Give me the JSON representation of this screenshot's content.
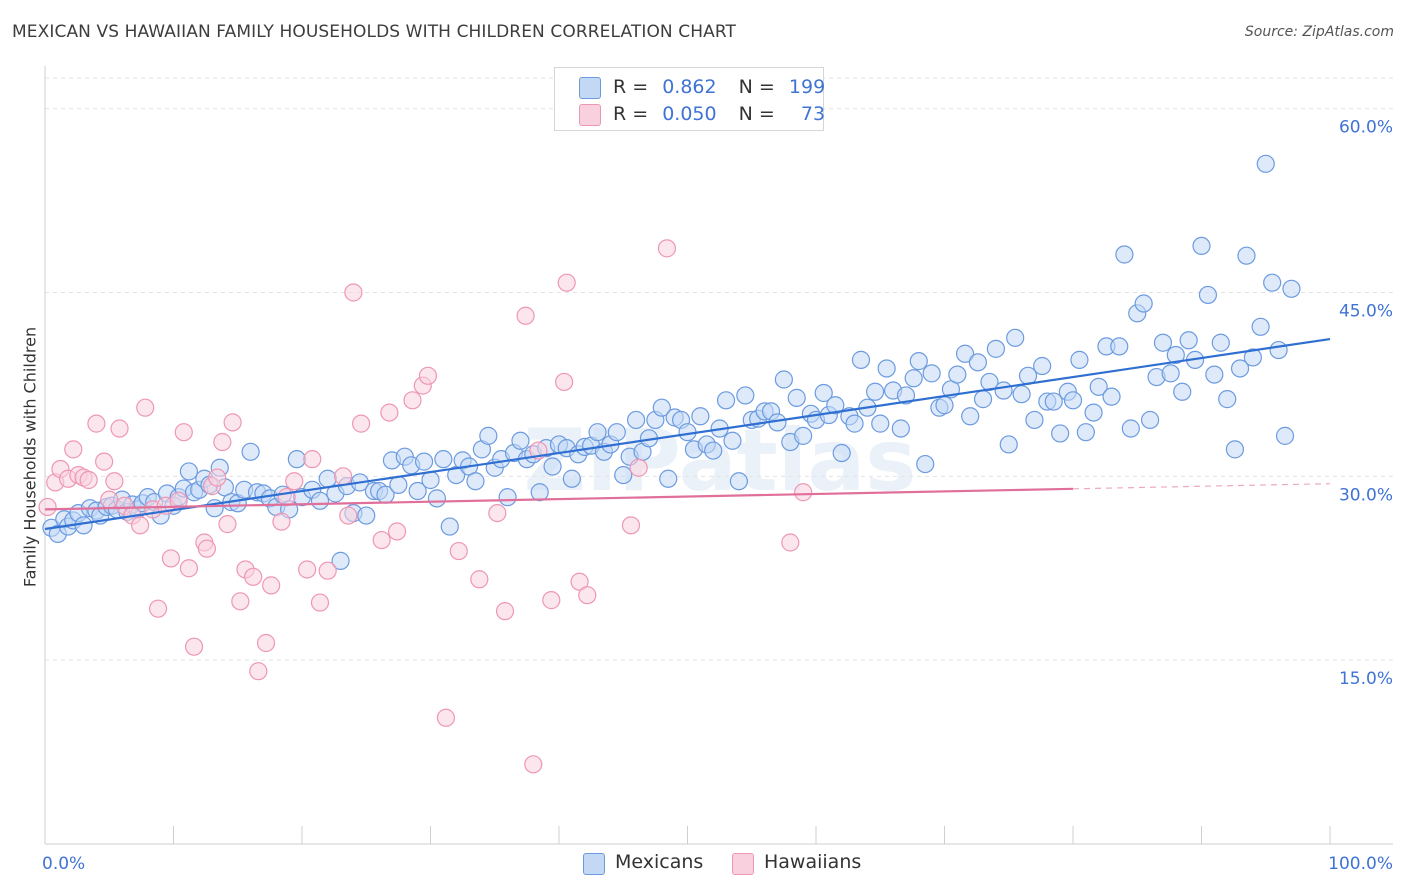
{
  "header": {
    "title": "MEXICAN VS HAWAIIAN FAMILY HOUSEHOLDS WITH CHILDREN CORRELATION CHART",
    "source": "Source: ZipAtlas.com"
  },
  "watermark": "ZIPatlas",
  "legend_top": {
    "rows": [
      {
        "r_label": "R =",
        "r_value": "0.862",
        "n_label": "N =",
        "n_value": "199",
        "color": "#a9c8f2"
      },
      {
        "r_label": "R =",
        "r_value": "0.050",
        "n_label": "N =",
        "n_value": "73",
        "color": "#f6b9cc"
      }
    ]
  },
  "legend_bottom": {
    "items": [
      {
        "label": "Mexicans",
        "color": "#a9c8f2"
      },
      {
        "label": "Hawaiians",
        "color": "#f6b9cc"
      }
    ]
  },
  "colors": {
    "blue_stroke": "#6c9be0",
    "blue_fill": "#c3d8f5",
    "blue_line": "#2f6fd1",
    "pink_stroke": "#ee97b3",
    "pink_fill": "#f9d1de",
    "pink_line": "#e0709a",
    "axis_text": "#3f73d4",
    "grid": "#e3e3e3"
  },
  "chart_data": {
    "type": "scatter",
    "title": "MEXICAN VS HAWAIIAN FAMILY HOUSEHOLDS WITH CHILDREN CORRELATION CHART",
    "xlabel": "",
    "ylabel": "Family Households with Children",
    "xlim": [
      0,
      100
    ],
    "ylim": [
      0,
      62.5
    ],
    "x_tick_labels": [
      "0.0%",
      "100.0%"
    ],
    "y_ticks": [
      15,
      30,
      45,
      60
    ],
    "y_tick_labels": [
      "15.0%",
      "30.0%",
      "45.0%",
      "60.0%"
    ],
    "grid": true,
    "legend_position": "top-center",
    "series": [
      {
        "name": "Mexicans",
        "trend": {
          "x": [
            0,
            100
          ],
          "y": [
            25.7,
            41.2
          ]
        },
        "points": [
          [
            0.5,
            25.8
          ],
          [
            1.0,
            25.3
          ],
          [
            1.5,
            26.5
          ],
          [
            1.8,
            25.9
          ],
          [
            2.2,
            26.4
          ],
          [
            2.6,
            27.0
          ],
          [
            3.0,
            26.0
          ],
          [
            3.5,
            27.4
          ],
          [
            4.0,
            27.2
          ],
          [
            4.3,
            26.8
          ],
          [
            4.8,
            27.5
          ],
          [
            5.2,
            27.6
          ],
          [
            5.6,
            27.3
          ],
          [
            6.0,
            28.1
          ],
          [
            6.4,
            27.1
          ],
          [
            6.8,
            27.7
          ],
          [
            7.2,
            27.3
          ],
          [
            7.6,
            27.8
          ],
          [
            8.0,
            28.3
          ],
          [
            8.5,
            27.9
          ],
          [
            9.0,
            26.8
          ],
          [
            9.5,
            28.6
          ],
          [
            10.0,
            27.6
          ],
          [
            10.4,
            28.3
          ],
          [
            10.8,
            29.0
          ],
          [
            11.2,
            30.4
          ],
          [
            11.6,
            28.7
          ],
          [
            12.0,
            28.9
          ],
          [
            12.4,
            29.8
          ],
          [
            12.8,
            29.3
          ],
          [
            13.2,
            27.4
          ],
          [
            13.6,
            30.7
          ],
          [
            14.0,
            29.1
          ],
          [
            14.5,
            27.9
          ],
          [
            15.0,
            27.8
          ],
          [
            15.5,
            28.9
          ],
          [
            16.0,
            32.0
          ],
          [
            16.5,
            28.7
          ],
          [
            17.0,
            28.6
          ],
          [
            17.5,
            28.2
          ],
          [
            18.0,
            27.5
          ],
          [
            18.5,
            28.5
          ],
          [
            19.0,
            27.3
          ],
          [
            19.6,
            31.4
          ],
          [
            20.0,
            28.3
          ],
          [
            20.8,
            28.9
          ],
          [
            21.4,
            28.0
          ],
          [
            22.0,
            29.8
          ],
          [
            22.6,
            28.6
          ],
          [
            23.0,
            23.1
          ],
          [
            23.5,
            29.2
          ],
          [
            24.0,
            27.0
          ],
          [
            24.5,
            29.5
          ],
          [
            25.0,
            26.8
          ],
          [
            25.6,
            28.8
          ],
          [
            26.0,
            28.8
          ],
          [
            26.5,
            28.5
          ],
          [
            27.0,
            31.3
          ],
          [
            27.5,
            29.3
          ],
          [
            28.0,
            31.6
          ],
          [
            28.5,
            30.9
          ],
          [
            29.0,
            28.8
          ],
          [
            29.5,
            31.2
          ],
          [
            30.0,
            29.7
          ],
          [
            30.5,
            28.2
          ],
          [
            31.0,
            31.4
          ],
          [
            31.5,
            25.9
          ],
          [
            32.0,
            30.1
          ],
          [
            32.5,
            31.3
          ],
          [
            33.0,
            30.8
          ],
          [
            33.5,
            29.6
          ],
          [
            34.0,
            32.2
          ],
          [
            34.5,
            33.3
          ],
          [
            35.0,
            30.7
          ],
          [
            35.5,
            31.4
          ],
          [
            36.0,
            28.3
          ],
          [
            36.5,
            31.9
          ],
          [
            37.0,
            32.9
          ],
          [
            37.5,
            31.4
          ],
          [
            38.0,
            31.8
          ],
          [
            38.5,
            28.7
          ],
          [
            39.0,
            32.3
          ],
          [
            39.5,
            30.8
          ],
          [
            40.0,
            32.6
          ],
          [
            40.6,
            32.3
          ],
          [
            41.0,
            29.8
          ],
          [
            41.5,
            31.8
          ],
          [
            42.0,
            32.4
          ],
          [
            42.5,
            32.5
          ],
          [
            43.0,
            33.6
          ],
          [
            43.5,
            32.0
          ],
          [
            44.0,
            32.6
          ],
          [
            44.5,
            33.6
          ],
          [
            45.0,
            30.1
          ],
          [
            45.5,
            31.6
          ],
          [
            46.0,
            34.6
          ],
          [
            46.5,
            32.0
          ],
          [
            47.0,
            33.1
          ],
          [
            47.5,
            34.6
          ],
          [
            48.0,
            35.6
          ],
          [
            48.5,
            29.8
          ],
          [
            49.0,
            34.8
          ],
          [
            49.5,
            34.6
          ],
          [
            50.0,
            33.6
          ],
          [
            50.5,
            32.2
          ],
          [
            51.0,
            34.9
          ],
          [
            51.5,
            32.6
          ],
          [
            52.0,
            32.1
          ],
          [
            52.5,
            33.9
          ],
          [
            53.0,
            36.2
          ],
          [
            53.5,
            32.9
          ],
          [
            54.0,
            29.6
          ],
          [
            54.5,
            36.6
          ],
          [
            55.0,
            34.6
          ],
          [
            55.5,
            34.7
          ],
          [
            56.0,
            35.3
          ],
          [
            56.5,
            35.3
          ],
          [
            57.0,
            34.4
          ],
          [
            57.5,
            37.9
          ],
          [
            58.0,
            32.8
          ],
          [
            58.5,
            36.4
          ],
          [
            59.0,
            33.3
          ],
          [
            59.6,
            35.1
          ],
          [
            60.0,
            34.6
          ],
          [
            60.6,
            36.8
          ],
          [
            61.0,
            35.0
          ],
          [
            61.5,
            35.8
          ],
          [
            62.0,
            31.9
          ],
          [
            62.6,
            34.9
          ],
          [
            63.0,
            34.3
          ],
          [
            63.5,
            39.5
          ],
          [
            64.0,
            35.6
          ],
          [
            64.6,
            36.9
          ],
          [
            65.0,
            34.3
          ],
          [
            65.5,
            38.8
          ],
          [
            66.0,
            37.0
          ],
          [
            66.6,
            33.9
          ],
          [
            67.0,
            36.6
          ],
          [
            67.6,
            38.0
          ],
          [
            68.0,
            39.4
          ],
          [
            68.5,
            31.0
          ],
          [
            69.0,
            38.4
          ],
          [
            69.6,
            35.6
          ],
          [
            70.0,
            35.8
          ],
          [
            70.5,
            37.1
          ],
          [
            71.0,
            38.3
          ],
          [
            71.6,
            40.0
          ],
          [
            72.0,
            34.9
          ],
          [
            72.6,
            39.3
          ],
          [
            73.0,
            36.3
          ],
          [
            73.5,
            37.7
          ],
          [
            74.0,
            40.4
          ],
          [
            74.6,
            37.0
          ],
          [
            75.0,
            32.6
          ],
          [
            75.5,
            41.3
          ],
          [
            76.0,
            36.7
          ],
          [
            76.5,
            38.2
          ],
          [
            77.0,
            34.6
          ],
          [
            77.6,
            39.0
          ],
          [
            78.0,
            36.1
          ],
          [
            78.5,
            36.1
          ],
          [
            79.0,
            33.5
          ],
          [
            79.6,
            36.9
          ],
          [
            80.0,
            36.2
          ],
          [
            80.5,
            39.5
          ],
          [
            81.0,
            33.6
          ],
          [
            81.6,
            35.2
          ],
          [
            82.0,
            37.3
          ],
          [
            82.6,
            40.6
          ],
          [
            83.0,
            36.5
          ],
          [
            83.6,
            40.6
          ],
          [
            84.0,
            48.1
          ],
          [
            84.5,
            33.9
          ],
          [
            85.0,
            43.3
          ],
          [
            85.5,
            44.1
          ],
          [
            86.0,
            34.6
          ],
          [
            86.5,
            38.1
          ],
          [
            87.0,
            40.9
          ],
          [
            87.6,
            38.4
          ],
          [
            88.0,
            39.9
          ],
          [
            88.5,
            36.9
          ],
          [
            89.0,
            41.1
          ],
          [
            89.5,
            39.5
          ],
          [
            90.0,
            48.8
          ],
          [
            90.5,
            44.8
          ],
          [
            91.0,
            38.3
          ],
          [
            91.5,
            40.9
          ],
          [
            92.0,
            36.3
          ],
          [
            92.6,
            32.2
          ],
          [
            93.0,
            38.8
          ],
          [
            93.5,
            48.0
          ],
          [
            94.0,
            39.7
          ],
          [
            94.6,
            42.2
          ],
          [
            95.0,
            55.5
          ],
          [
            95.5,
            45.8
          ],
          [
            96.0,
            40.3
          ],
          [
            96.5,
            33.3
          ],
          [
            97.0,
            45.3
          ]
        ]
      },
      {
        "name": "Hawaiians",
        "trend": {
          "x": [
            0,
            100
          ],
          "y": [
            27.3,
            29.4
          ]
        },
        "trend_solid_until_x": 80,
        "points": [
          [
            0.2,
            27.5
          ],
          [
            0.8,
            29.5
          ],
          [
            1.2,
            30.6
          ],
          [
            1.8,
            29.8
          ],
          [
            2.2,
            32.2
          ],
          [
            2.6,
            30.1
          ],
          [
            3.0,
            29.9
          ],
          [
            3.4,
            29.7
          ],
          [
            4.0,
            34.3
          ],
          [
            4.6,
            31.2
          ],
          [
            5.0,
            28.1
          ],
          [
            5.4,
            29.6
          ],
          [
            5.8,
            33.9
          ],
          [
            6.2,
            27.6
          ],
          [
            6.8,
            26.8
          ],
          [
            7.4,
            26.0
          ],
          [
            7.8,
            35.6
          ],
          [
            8.4,
            27.3
          ],
          [
            8.8,
            19.2
          ],
          [
            9.4,
            27.6
          ],
          [
            9.8,
            23.3
          ],
          [
            10.4,
            28.0
          ],
          [
            10.8,
            33.6
          ],
          [
            11.2,
            22.5
          ],
          [
            11.6,
            16.1
          ],
          [
            12.4,
            24.6
          ],
          [
            12.6,
            24.1
          ],
          [
            13.0,
            29.2
          ],
          [
            13.4,
            29.9
          ],
          [
            13.8,
            32.8
          ],
          [
            14.2,
            26.1
          ],
          [
            14.6,
            34.4
          ],
          [
            15.2,
            19.8
          ],
          [
            15.6,
            22.4
          ],
          [
            16.2,
            21.8
          ],
          [
            16.6,
            14.1
          ],
          [
            17.2,
            16.4
          ],
          [
            17.6,
            21.1
          ],
          [
            18.4,
            26.3
          ],
          [
            18.8,
            28.3
          ],
          [
            19.4,
            29.6
          ],
          [
            20.4,
            22.4
          ],
          [
            20.8,
            31.4
          ],
          [
            21.4,
            19.7
          ],
          [
            22.0,
            22.3
          ],
          [
            23.2,
            30.0
          ],
          [
            23.6,
            26.8
          ],
          [
            24.0,
            45.0
          ],
          [
            24.6,
            34.3
          ],
          [
            26.2,
            24.8
          ],
          [
            26.8,
            35.2
          ],
          [
            27.4,
            25.5
          ],
          [
            28.6,
            36.2
          ],
          [
            29.4,
            37.4
          ],
          [
            29.8,
            38.2
          ],
          [
            31.2,
            10.3
          ],
          [
            32.2,
            23.9
          ],
          [
            33.8,
            21.6
          ],
          [
            35.2,
            27.0
          ],
          [
            35.8,
            19.0
          ],
          [
            37.4,
            43.1
          ],
          [
            38.0,
            6.5
          ],
          [
            38.4,
            32.1
          ],
          [
            39.4,
            19.9
          ],
          [
            40.4,
            37.7
          ],
          [
            40.6,
            45.8
          ],
          [
            41.6,
            21.4
          ],
          [
            42.2,
            20.3
          ],
          [
            45.6,
            26.0
          ],
          [
            46.2,
            30.7
          ],
          [
            48.4,
            48.6
          ],
          [
            58.0,
            24.6
          ],
          [
            59.0,
            28.7
          ]
        ]
      }
    ]
  }
}
